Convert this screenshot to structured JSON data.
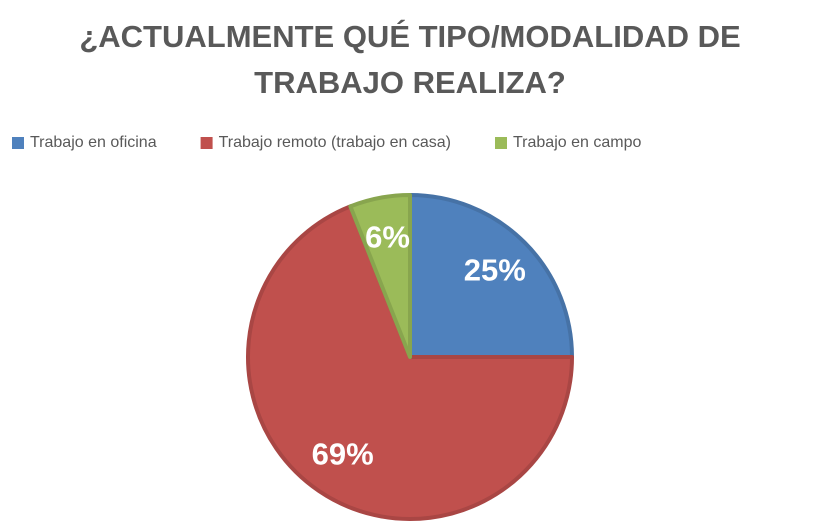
{
  "chart_data": {
    "type": "pie",
    "title": "¿ACTUALMENTE QUÉ TIPO/MODALIDAD DE TRABAJO REALIZA?",
    "categories": [
      "Trabajo en oficina",
      "Trabajo remoto (trabajo en casa)",
      "Trabajo en campo"
    ],
    "values": [
      25,
      69,
      6
    ],
    "value_labels": [
      "25%",
      "69%",
      "6%"
    ],
    "colors": [
      "#4f81bd",
      "#c0504d",
      "#9bbb59"
    ],
    "legend": "top"
  }
}
